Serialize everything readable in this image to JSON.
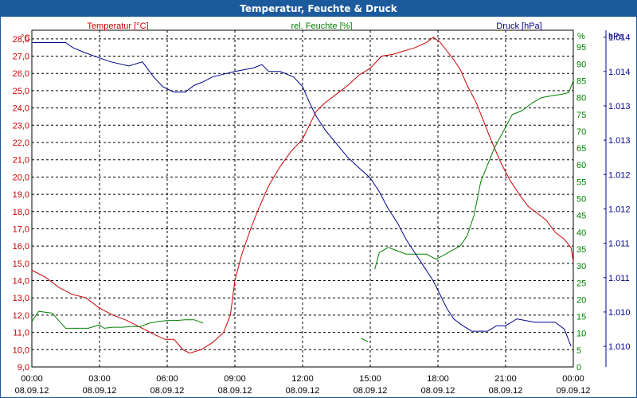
{
  "window": {
    "title": "Temperatur, Feuchte & Druck"
  },
  "colors": {
    "temperature": "#cc0000",
    "humidity": "#008000",
    "pressure": "#00008b",
    "grid": "#000000",
    "title_bg": "#1c5a9e"
  },
  "chart_data": {
    "type": "line",
    "title": "Temperatur, Feuchte & Druck",
    "x_ticks": [
      {
        "time": "00:00",
        "date": "08.09.12"
      },
      {
        "time": "03:00",
        "date": "08.09.12"
      },
      {
        "time": "06:00",
        "date": "08.09.12"
      },
      {
        "time": "09:00",
        "date": "08.09.12"
      },
      {
        "time": "12:00",
        "date": "08.09.12"
      },
      {
        "time": "15:00",
        "date": "08.09.12"
      },
      {
        "time": "18:00",
        "date": "08.09.12"
      },
      {
        "time": "21:00",
        "date": "08.09.12"
      },
      {
        "time": "00:00",
        "date": "09.09.12"
      }
    ],
    "x_range_hours": [
      0,
      24
    ],
    "axes": {
      "temperature": {
        "label": "Temperatur [°C]",
        "unit": "°C",
        "range": [
          9.0,
          28.5
        ],
        "ticks": [
          "9,0",
          "10,0",
          "11,0",
          "12,0",
          "13,0",
          "14,0",
          "15,0",
          "16,0",
          "17,0",
          "18,0",
          "19,0",
          "20,0",
          "21,0",
          "22,0",
          "23,0",
          "24,0",
          "25,0",
          "26,0",
          "27,0",
          "28,0"
        ]
      },
      "humidity": {
        "label": "rel. Feuchte [%]",
        "unit": "%",
        "range": [
          0,
          100
        ],
        "ticks": [
          "0",
          "5",
          "10",
          "15",
          "20",
          "25",
          "30",
          "35",
          "40",
          "45",
          "50",
          "55",
          "60",
          "65",
          "70",
          "75",
          "80",
          "85",
          "90",
          "95"
        ]
      },
      "pressure": {
        "label": "Druck [hPa]",
        "unit": "hPa",
        "range": [
          1009.7,
          1014.6
        ],
        "tick_values": [
          1010.0,
          1010.5,
          1011.0,
          1011.5,
          1012.0,
          1012.5,
          1013.0,
          1013.5,
          1014.0,
          1014.5
        ],
        "tick_labels": [
          "1.010",
          "1.010",
          "1.011",
          "1.011",
          "1.012",
          "1.012",
          "1.013",
          "1.013",
          "1.014",
          "1.014"
        ]
      }
    },
    "series": [
      {
        "name": "Temperatur",
        "axis": "temperature",
        "points": [
          [
            0,
            14.6
          ],
          [
            0.6,
            14.2
          ],
          [
            1.2,
            13.6
          ],
          [
            1.8,
            13.2
          ],
          [
            2.4,
            13.0
          ],
          [
            3.0,
            12.4
          ],
          [
            3.6,
            12.0
          ],
          [
            4.2,
            11.7
          ],
          [
            4.8,
            11.3
          ],
          [
            5.4,
            10.9
          ],
          [
            5.9,
            10.6
          ],
          [
            6.3,
            10.6
          ],
          [
            6.7,
            10.0
          ],
          [
            7.0,
            9.8
          ],
          [
            7.5,
            10.0
          ],
          [
            8.0,
            10.4
          ],
          [
            8.5,
            11.0
          ],
          [
            8.8,
            12.0
          ],
          [
            9.0,
            14.0
          ],
          [
            9.3,
            15.5
          ],
          [
            9.7,
            17.0
          ],
          [
            10.0,
            18.0
          ],
          [
            10.5,
            19.5
          ],
          [
            11.0,
            20.6
          ],
          [
            11.5,
            21.5
          ],
          [
            12.0,
            22.2
          ],
          [
            12.3,
            23.0
          ],
          [
            12.6,
            23.8
          ],
          [
            13.0,
            24.3
          ],
          [
            13.5,
            24.8
          ],
          [
            14.0,
            25.3
          ],
          [
            14.5,
            25.9
          ],
          [
            15.0,
            26.3
          ],
          [
            15.5,
            27.0
          ],
          [
            16.0,
            27.1
          ],
          [
            16.5,
            27.3
          ],
          [
            17.0,
            27.5
          ],
          [
            17.5,
            27.8
          ],
          [
            17.8,
            28.1
          ],
          [
            18.1,
            27.8
          ],
          [
            18.4,
            27.3
          ],
          [
            18.7,
            26.8
          ],
          [
            19.0,
            26.2
          ],
          [
            19.3,
            25.3
          ],
          [
            19.7,
            24.3
          ],
          [
            20.0,
            23.3
          ],
          [
            20.4,
            22.0
          ],
          [
            20.8,
            20.8
          ],
          [
            21.2,
            19.8
          ],
          [
            21.6,
            19.0
          ],
          [
            22.0,
            18.3
          ],
          [
            22.4,
            17.9
          ],
          [
            22.8,
            17.5
          ],
          [
            23.2,
            16.8
          ],
          [
            23.6,
            16.4
          ],
          [
            23.9,
            15.9
          ],
          [
            24.0,
            15.1
          ]
        ]
      },
      {
        "name": "rel. Feuchte",
        "axis": "humidity",
        "segments": [
          [
            [
              0,
              13.5
            ],
            [
              0.3,
              16.5
            ],
            [
              0.9,
              16.0
            ],
            [
              1.5,
              11.5
            ],
            [
              2.0,
              11.5
            ],
            [
              2.5,
              11.5
            ],
            [
              3.0,
              12.5
            ],
            [
              3.2,
              11.5
            ],
            [
              3.6,
              11.8
            ],
            [
              4.0,
              11.8
            ],
            [
              4.4,
              12.0
            ],
            [
              4.8,
              12.0
            ],
            [
              5.2,
              13.0
            ],
            [
              5.6,
              13.5
            ],
            [
              6.0,
              13.8
            ],
            [
              6.4,
              13.8
            ],
            [
              6.8,
              14.0
            ],
            [
              7.2,
              14.0
            ],
            [
              7.6,
              13.0
            ]
          ],
          [
            [
              14.6,
              8.5
            ],
            [
              14.9,
              7.5
            ]
          ],
          [
            [
              15.2,
              29.0
            ],
            [
              15.4,
              34.0
            ],
            [
              15.8,
              35.5
            ],
            [
              16.2,
              34.5
            ],
            [
              16.6,
              33.5
            ],
            [
              17.0,
              33.5
            ],
            [
              17.5,
              33.5
            ],
            [
              17.9,
              32.0
            ],
            [
              18.2,
              33.0
            ],
            [
              18.6,
              34.5
            ],
            [
              19.0,
              36.0
            ],
            [
              19.3,
              39.0
            ],
            [
              19.6,
              45.0
            ],
            [
              19.9,
              55.0
            ],
            [
              20.2,
              60.0
            ],
            [
              20.5,
              65.0
            ],
            [
              20.9,
              70.0
            ],
            [
              21.3,
              75.0
            ],
            [
              21.7,
              76.0
            ],
            [
              22.2,
              78.5
            ],
            [
              22.6,
              80.0
            ],
            [
              23.0,
              80.5
            ],
            [
              23.5,
              81.0
            ],
            [
              23.8,
              81.5
            ],
            [
              24.0,
              85.0
            ]
          ]
        ]
      },
      {
        "name": "Druck",
        "axis": "pressure",
        "points": [
          [
            0,
            1014.42
          ],
          [
            1.5,
            1014.42
          ],
          [
            1.8,
            1014.35
          ],
          [
            2.3,
            1014.28
          ],
          [
            2.8,
            1014.22
          ],
          [
            3.5,
            1014.14
          ],
          [
            4.3,
            1014.08
          ],
          [
            4.9,
            1014.14
          ],
          [
            5.4,
            1013.92
          ],
          [
            5.8,
            1013.78
          ],
          [
            6.3,
            1013.7
          ],
          [
            6.8,
            1013.7
          ],
          [
            7.2,
            1013.8
          ],
          [
            7.6,
            1013.85
          ],
          [
            8.0,
            1013.92
          ],
          [
            8.5,
            1013.96
          ],
          [
            9.0,
            1014.0
          ],
          [
            9.8,
            1014.05
          ],
          [
            10.2,
            1014.1
          ],
          [
            10.5,
            1014.0
          ],
          [
            11.0,
            1014.0
          ],
          [
            11.6,
            1013.92
          ],
          [
            12.0,
            1013.78
          ],
          [
            12.3,
            1013.55
          ],
          [
            12.6,
            1013.35
          ],
          [
            13.0,
            1013.15
          ],
          [
            13.5,
            1012.95
          ],
          [
            14.0,
            1012.75
          ],
          [
            14.5,
            1012.6
          ],
          [
            15.0,
            1012.45
          ],
          [
            15.4,
            1012.25
          ],
          [
            15.8,
            1012.0
          ],
          [
            16.2,
            1011.8
          ],
          [
            16.6,
            1011.55
          ],
          [
            17.0,
            1011.35
          ],
          [
            17.4,
            1011.15
          ],
          [
            17.8,
            1010.95
          ],
          [
            18.1,
            1010.75
          ],
          [
            18.4,
            1010.55
          ],
          [
            18.7,
            1010.4
          ],
          [
            19.1,
            1010.3
          ],
          [
            19.5,
            1010.22
          ],
          [
            20.2,
            1010.22
          ],
          [
            20.6,
            1010.3
          ],
          [
            21.0,
            1010.3
          ],
          [
            21.5,
            1010.4
          ],
          [
            22.3,
            1010.35
          ],
          [
            23.2,
            1010.35
          ],
          [
            23.6,
            1010.25
          ],
          [
            23.9,
            1010.0
          ]
        ]
      }
    ]
  }
}
